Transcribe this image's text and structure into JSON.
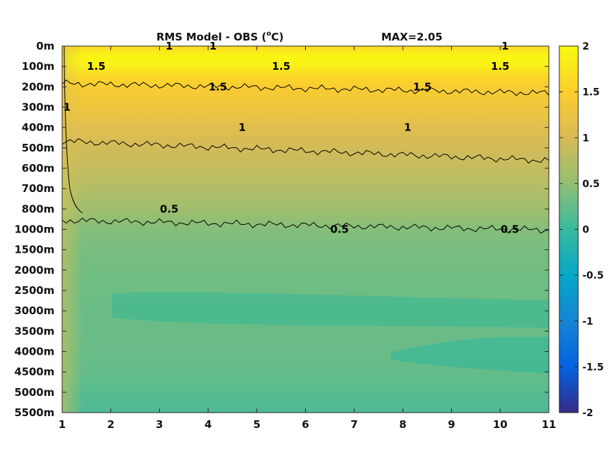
{
  "chart_data": {
    "type": "heatmap",
    "title": "RMS Model - OBS (°C)",
    "title_parts": {
      "main": "RMS Model - OBS (",
      "sup": "o",
      "unit": "C)"
    },
    "annotation": "MAX=2.05",
    "x": {
      "ticks": [
        1,
        2,
        3,
        4,
        5,
        6,
        7,
        8,
        9,
        10,
        11
      ],
      "lim": [
        1,
        11
      ]
    },
    "y": {
      "tick_labels": [
        "0m",
        "100m",
        "200m",
        "300m",
        "400m",
        "500m",
        "600m",
        "700m",
        "800m",
        "1000m",
        "1500m",
        "2000m",
        "2500m",
        "3000m",
        "3500m",
        "4000m",
        "4500m",
        "5000m",
        "5500m"
      ],
      "direction": "top-to-bottom"
    },
    "colorbar": {
      "lim": [
        -2,
        2
      ],
      "ticks": [
        2,
        1.5,
        1,
        0.5,
        0,
        -0.5,
        -1,
        -1.5,
        -2
      ],
      "tick_labels": [
        "2",
        "1.5",
        "1",
        "0.5",
        "0",
        "-0.5",
        "-1",
        "-1.5",
        "-2"
      ],
      "colormap": "parula",
      "colors": [
        "#352a87",
        "#0363e1",
        "#1485d4",
        "#06a7c6",
        "#38b99e",
        "#92bf73",
        "#d9ba56",
        "#fcce2e",
        "#f9fb0e"
      ]
    },
    "profile": {
      "levels": [
        "0m",
        "50m",
        "100m",
        "150m",
        "200m",
        "300m",
        "400m",
        "500m",
        "600m",
        "700m",
        "800m",
        "1000m",
        "1500m",
        "2000m",
        "2500m",
        "3000m",
        "3500m",
        "4000m",
        "4500m",
        "5000m",
        "5500m"
      ],
      "values": [
        1.6,
        1.95,
        1.85,
        1.6,
        1.45,
        1.3,
        1.1,
        0.95,
        0.85,
        0.72,
        0.6,
        0.42,
        0.36,
        0.32,
        0.3,
        0.28,
        0.28,
        0.27,
        0.25,
        0.17,
        0.12
      ]
    },
    "contours": [
      {
        "label": "1",
        "positions": [
          [
            3.2,
            "0m"
          ],
          [
            4.1,
            "0m"
          ],
          [
            10.1,
            "0m"
          ]
        ]
      },
      {
        "label": "1.5",
        "positions": [
          [
            1.7,
            "100m"
          ],
          [
            5.5,
            "100m"
          ],
          [
            10.0,
            "100m"
          ]
        ]
      },
      {
        "label": "1.5",
        "positions": [
          [
            4.2,
            "200m"
          ],
          [
            8.4,
            "200m"
          ]
        ]
      },
      {
        "label": "1",
        "positions": [
          [
            1.1,
            "300m"
          ],
          [
            4.7,
            "400m"
          ],
          [
            8.1,
            "400m"
          ]
        ]
      },
      {
        "label": "0.5",
        "positions": [
          [
            3.2,
            "800m"
          ],
          [
            6.7,
            "1000m"
          ],
          [
            10.2,
            "1000m"
          ]
        ]
      }
    ],
    "contour_levels": [
      0.5,
      1,
      1.5
    ],
    "grid": false,
    "legend": "colorbar-right"
  }
}
